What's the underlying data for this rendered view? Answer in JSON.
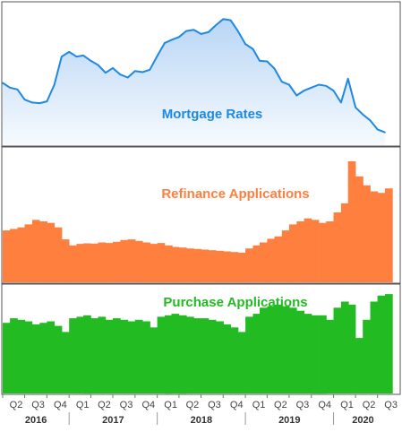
{
  "chart_data": [
    {
      "type": "area",
      "title": "Mortgage Rates",
      "color": "#1E88E5",
      "fill_top": "#b9d6f5",
      "fill_bottom": "#f6fafe",
      "x": [
        "2016-04-01",
        "2016-05-01",
        "2016-06-01",
        "2016-07-01",
        "2016-08-01",
        "2016-09-01",
        "2016-10-01",
        "2016-11-01",
        "2016-12-01",
        "2017-01-01",
        "2017-02-01",
        "2017-03-01",
        "2017-04-01",
        "2017-05-01",
        "2017-06-01",
        "2017-07-01",
        "2017-08-01",
        "2017-09-01",
        "2017-10-01",
        "2017-11-01",
        "2017-12-01",
        "2018-01-01",
        "2018-02-01",
        "2018-03-01",
        "2018-04-01",
        "2018-05-01",
        "2018-06-01",
        "2018-07-01",
        "2018-08-01",
        "2018-09-01",
        "2018-10-01",
        "2018-11-01",
        "2018-12-01",
        "2019-01-01",
        "2019-02-01",
        "2019-03-01",
        "2019-04-01",
        "2019-05-01",
        "2019-06-01",
        "2019-07-01",
        "2019-08-01",
        "2019-09-01",
        "2019-10-01",
        "2019-11-01",
        "2019-12-01",
        "2020-01-01",
        "2020-02-01",
        "2020-03-01",
        "2020-04-01",
        "2020-05-01",
        "2020-06-01",
        "2020-07-01",
        "2020-08-01"
      ],
      "values": [
        3.83,
        3.75,
        3.72,
        3.55,
        3.5,
        3.49,
        3.52,
        3.8,
        4.27,
        4.35,
        4.27,
        4.29,
        4.2,
        4.13,
        4.0,
        4.08,
        3.97,
        3.92,
        4.03,
        4.01,
        4.05,
        4.28,
        4.5,
        4.55,
        4.6,
        4.7,
        4.72,
        4.65,
        4.68,
        4.8,
        4.9,
        4.88,
        4.7,
        4.48,
        4.4,
        4.2,
        4.19,
        4.07,
        3.85,
        3.8,
        3.62,
        3.7,
        3.75,
        3.8,
        3.78,
        3.7,
        3.5,
        3.9,
        3.42,
        3.3,
        3.2,
        3.05,
        3.0
      ],
      "ylim": [
        2.8,
        5.1
      ]
    },
    {
      "type": "area",
      "title": "Refinance Applications",
      "color": "#FF7F3F",
      "x": [
        "2016-04-01",
        "2016-05-01",
        "2016-06-01",
        "2016-07-01",
        "2016-08-01",
        "2016-09-01",
        "2016-10-01",
        "2016-11-01",
        "2016-12-01",
        "2017-01-01",
        "2017-02-01",
        "2017-03-01",
        "2017-04-01",
        "2017-05-01",
        "2017-06-01",
        "2017-07-01",
        "2017-08-01",
        "2017-09-01",
        "2017-10-01",
        "2017-11-01",
        "2017-12-01",
        "2018-01-01",
        "2018-02-01",
        "2018-03-01",
        "2018-04-01",
        "2018-05-01",
        "2018-06-01",
        "2018-07-01",
        "2018-08-01",
        "2018-09-01",
        "2018-10-01",
        "2018-11-01",
        "2018-12-01",
        "2019-01-01",
        "2019-02-01",
        "2019-03-01",
        "2019-04-01",
        "2019-05-01",
        "2019-06-01",
        "2019-07-01",
        "2019-08-01",
        "2019-09-01",
        "2019-10-01",
        "2019-11-01",
        "2019-12-01",
        "2020-01-01",
        "2020-02-01",
        "2020-03-01",
        "2020-04-01",
        "2020-05-01",
        "2020-06-01",
        "2020-07-01",
        "2020-08-01"
      ],
      "values": [
        1700,
        1750,
        1800,
        1900,
        2050,
        2000,
        1950,
        1800,
        1400,
        1200,
        1250,
        1270,
        1260,
        1300,
        1280,
        1320,
        1380,
        1400,
        1350,
        1300,
        1250,
        1280,
        1200,
        1150,
        1130,
        1100,
        1080,
        1060,
        1040,
        1020,
        1000,
        980,
        960,
        1100,
        1200,
        1300,
        1420,
        1500,
        1700,
        1900,
        2000,
        2100,
        2050,
        1950,
        2000,
        2300,
        2600,
        4000,
        3500,
        3200,
        3000,
        2950,
        3100
      ],
      "ylim": [
        0,
        4300
      ]
    },
    {
      "type": "bar",
      "title": "Purchase Applications",
      "color": "#22BB22",
      "x": [
        "2016-04-01",
        "2016-05-01",
        "2016-06-01",
        "2016-07-01",
        "2016-08-01",
        "2016-09-01",
        "2016-10-01",
        "2016-11-01",
        "2016-12-01",
        "2017-01-01",
        "2017-02-01",
        "2017-03-01",
        "2017-04-01",
        "2017-05-01",
        "2017-06-01",
        "2017-07-01",
        "2017-08-01",
        "2017-09-01",
        "2017-10-01",
        "2017-11-01",
        "2017-12-01",
        "2018-01-01",
        "2018-02-01",
        "2018-03-01",
        "2018-04-01",
        "2018-05-01",
        "2018-06-01",
        "2018-07-01",
        "2018-08-01",
        "2018-09-01",
        "2018-10-01",
        "2018-11-01",
        "2018-12-01",
        "2019-01-01",
        "2019-02-01",
        "2019-03-01",
        "2019-04-01",
        "2019-05-01",
        "2019-06-01",
        "2019-07-01",
        "2019-08-01",
        "2019-09-01",
        "2019-10-01",
        "2019-11-01",
        "2019-12-01",
        "2020-01-01",
        "2020-02-01",
        "2020-03-01",
        "2020-04-01",
        "2020-05-01",
        "2020-06-01",
        "2020-07-01",
        "2020-08-01"
      ],
      "values": [
        230,
        245,
        240,
        235,
        225,
        230,
        235,
        220,
        200,
        245,
        250,
        255,
        245,
        250,
        240,
        245,
        240,
        235,
        240,
        235,
        215,
        250,
        255,
        260,
        255,
        250,
        245,
        245,
        240,
        235,
        225,
        215,
        200,
        250,
        260,
        280,
        285,
        290,
        285,
        280,
        270,
        260,
        255,
        255,
        240,
        280,
        300,
        290,
        180,
        240,
        300,
        320,
        325
      ],
      "ylim": [
        0,
        340
      ]
    }
  ],
  "x_axis": {
    "quarters": [
      {
        "date": "2016-04-01",
        "label": "Q2"
      },
      {
        "date": "2016-07-01",
        "label": "Q3"
      },
      {
        "date": "2016-10-01",
        "label": "Q4"
      },
      {
        "date": "2017-01-01",
        "label": "Q1"
      },
      {
        "date": "2017-04-01",
        "label": "Q2"
      },
      {
        "date": "2017-07-01",
        "label": "Q3"
      },
      {
        "date": "2017-10-01",
        "label": "Q4"
      },
      {
        "date": "2018-01-01",
        "label": "Q1"
      },
      {
        "date": "2018-04-01",
        "label": "Q2"
      },
      {
        "date": "2018-07-01",
        "label": "Q3"
      },
      {
        "date": "2018-10-01",
        "label": "Q4"
      },
      {
        "date": "2019-01-01",
        "label": "Q1"
      },
      {
        "date": "2019-04-01",
        "label": "Q2"
      },
      {
        "date": "2019-07-01",
        "label": "Q3"
      },
      {
        "date": "2019-10-01",
        "label": "Q4"
      },
      {
        "date": "2020-01-01",
        "label": "Q1"
      },
      {
        "date": "2020-04-01",
        "label": "Q2"
      },
      {
        "date": "2020-07-01",
        "label": "Q3"
      }
    ],
    "years": [
      {
        "label": "2016",
        "start": "2016-04-01",
        "end": "2017-01-01"
      },
      {
        "label": "2017",
        "start": "2017-01-01",
        "end": "2018-01-01"
      },
      {
        "label": "2018",
        "start": "2018-01-01",
        "end": "2019-01-01"
      },
      {
        "label": "2019",
        "start": "2019-01-01",
        "end": "2020-01-01"
      },
      {
        "label": "2020",
        "start": "2020-01-01",
        "end": "2020-09-01"
      }
    ]
  }
}
